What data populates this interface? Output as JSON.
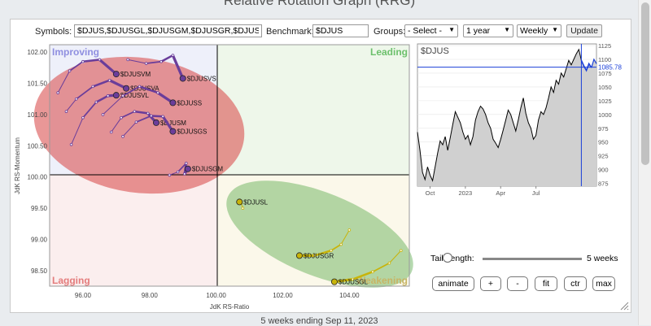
{
  "page": {
    "title": "Relative Rotation Graph (RRG)",
    "caption": "5 weeks ending Sep 11, 2023"
  },
  "toolbar": {
    "symbols_label": "Symbols:",
    "symbols_value": "$DJUS,$DJUSGL,$DJUSGM,$DJUSGR,$DJUSGS",
    "benchmark_label": "Benchmark:",
    "benchmark_value": "$DJUS",
    "groups_label": "Groups:",
    "groups_value": "- Select -",
    "period_value": "1 year",
    "interval_value": "Weekly",
    "update_label": "Update"
  },
  "controls": {
    "tail_length_label": "Tail Length:",
    "tail_length_value": 5,
    "tail_length_max": 10,
    "tail_length_unit": "5 weeks",
    "buttons": [
      "animate",
      "+",
      "-",
      "fit",
      "ctr",
      "max"
    ]
  },
  "colors": {
    "improving_bg": "#eef0fa",
    "leading_bg": "#eef7ea",
    "lagging_bg": "#fbeeee",
    "weakening_bg": "#fbf8ea",
    "red_ellipse": "#d94c4c",
    "green_ellipse": "#5aaa4e",
    "purple": "#6a3d9a",
    "gold": "#c8b40a",
    "label_improving": "#8f8fe0",
    "label_leading": "#6cc06c",
    "label_lagging": "#e47c7c",
    "label_weakening": "#c8b464"
  },
  "chart_data": [
    {
      "type": "scatter",
      "subtype": "relative-rotation-graph",
      "xlabel": "JdK RS-Ratio",
      "ylabel": "JdK RS-Momentum",
      "xlim": [
        95.0,
        105.8
      ],
      "ylim": [
        98.25,
        102.12
      ],
      "xticks": [
        "96.00",
        "98.00",
        "100.00",
        "102.00",
        "104.00"
      ],
      "yticks": [
        "102.00",
        "101.50",
        "101.00",
        "100.50",
        "100.00",
        "99.50",
        "99.00",
        "98.50"
      ],
      "x_center": 100.0,
      "y_center": 100.0,
      "quadrants": {
        "top_left": "Improving",
        "top_right": "Leading",
        "bottom_left": "Lagging",
        "bottom_right": "Weakening"
      },
      "series": [
        {
          "name": "$DJUSVM",
          "color": "purple",
          "points": [
            [
              95.25,
              101.35
            ],
            [
              95.6,
              101.7
            ],
            [
              96.0,
              101.85
            ],
            [
              96.5,
              101.88
            ],
            [
              97.0,
              101.65
            ]
          ]
        },
        {
          "name": "$DJUSVS",
          "color": "purple",
          "points": [
            [
              97.35,
              101.88
            ],
            [
              97.9,
              101.82
            ],
            [
              98.35,
              101.85
            ],
            [
              98.7,
              101.95
            ],
            [
              99.0,
              101.58
            ]
          ]
        },
        {
          "name": "$DJUSVA",
          "color": "purple",
          "points": [
            [
              95.5,
              101.05
            ],
            [
              95.8,
              101.25
            ],
            [
              96.3,
              101.45
            ],
            [
              96.8,
              101.55
            ],
            [
              97.3,
              101.42
            ]
          ]
        },
        {
          "name": "$DJUSVL",
          "color": "purple",
          "points": [
            [
              95.65,
              100.52
            ],
            [
              96.0,
              100.95
            ],
            [
              96.4,
              101.2
            ],
            [
              96.75,
              101.3
            ],
            [
              97.0,
              101.31
            ]
          ]
        },
        {
          "name": "$DJUSS",
          "color": "purple",
          "points": [
            [
              96.6,
              101.0
            ],
            [
              97.2,
              101.3
            ],
            [
              97.7,
              101.45
            ],
            [
              98.25,
              101.35
            ],
            [
              98.7,
              101.19
            ]
          ]
        },
        {
          "name": "$DJUSM",
          "color": "purple",
          "points": [
            [
              96.85,
              100.72
            ],
            [
              97.15,
              100.95
            ],
            [
              97.55,
              101.05
            ],
            [
              97.95,
              101.02
            ],
            [
              98.2,
              100.87
            ]
          ]
        },
        {
          "name": "$DJUSGS",
          "color": "purple",
          "points": [
            [
              97.2,
              100.65
            ],
            [
              97.6,
              100.88
            ],
            [
              98.05,
              100.98
            ],
            [
              98.4,
              100.97
            ],
            [
              98.7,
              100.73
            ]
          ]
        },
        {
          "name": "$DJUSGM",
          "color": "purple",
          "points": [
            [
              98.6,
              100.03
            ],
            [
              98.85,
              100.08
            ],
            [
              99.1,
              100.22
            ],
            [
              99.05,
              100.05
            ],
            [
              99.15,
              100.13
            ]
          ]
        },
        {
          "name": "$DJUSL",
          "color": "gold",
          "points": [
            [
              100.8,
              99.5
            ],
            [
              100.75,
              99.58
            ],
            [
              100.7,
              99.6
            ],
            [
              100.72,
              99.58
            ],
            [
              100.7,
              99.6
            ]
          ]
        },
        {
          "name": "$DJUSGR",
          "color": "gold",
          "points": [
            [
              104.0,
              99.15
            ],
            [
              103.75,
              98.92
            ],
            [
              103.45,
              98.82
            ],
            [
              102.95,
              98.74
            ],
            [
              102.5,
              98.74
            ]
          ]
        },
        {
          "name": "$DJUSGL",
          "color": "gold",
          "points": [
            [
              105.55,
              98.82
            ],
            [
              105.2,
              98.62
            ],
            [
              104.7,
              98.48
            ],
            [
              104.1,
              98.36
            ],
            [
              103.55,
              98.32
            ]
          ]
        }
      ]
    },
    {
      "type": "area",
      "title": "$DJUS",
      "x_ticks": [
        "Oct",
        "2023",
        "Apr",
        "Jul"
      ],
      "ylim": [
        870,
        1128
      ],
      "yticks": [
        "1125",
        "1100",
        "1075",
        "1050",
        "1025",
        "1000",
        "975",
        "950",
        "925",
        "900",
        "875"
      ],
      "reference_level": 1085.78,
      "reference_label": "1085.78",
      "values": [
        968,
        935,
        895,
        882,
        905,
        890,
        880,
        905,
        930,
        952,
        945,
        960,
        935,
        958,
        982,
        1005,
        995,
        985,
        968,
        955,
        962,
        945,
        960,
        990,
        1005,
        1015,
        1010,
        1000,
        985,
        975,
        955,
        948,
        940,
        955,
        972,
        990,
        1008,
        1000,
        985,
        970,
        990,
        1012,
        1030,
        1002,
        985,
        975,
        955,
        962,
        990,
        1005,
        1000,
        1012,
        1030,
        1050,
        1040,
        1062,
        1055,
        1075,
        1068,
        1083,
        1098,
        1090,
        1100,
        1110,
        1118,
        1098
      ],
      "recent_values": [
        1098,
        1088,
        1080,
        1092,
        1085
      ],
      "trailing_values": [
        1085,
        1100,
        1092
      ]
    }
  ]
}
